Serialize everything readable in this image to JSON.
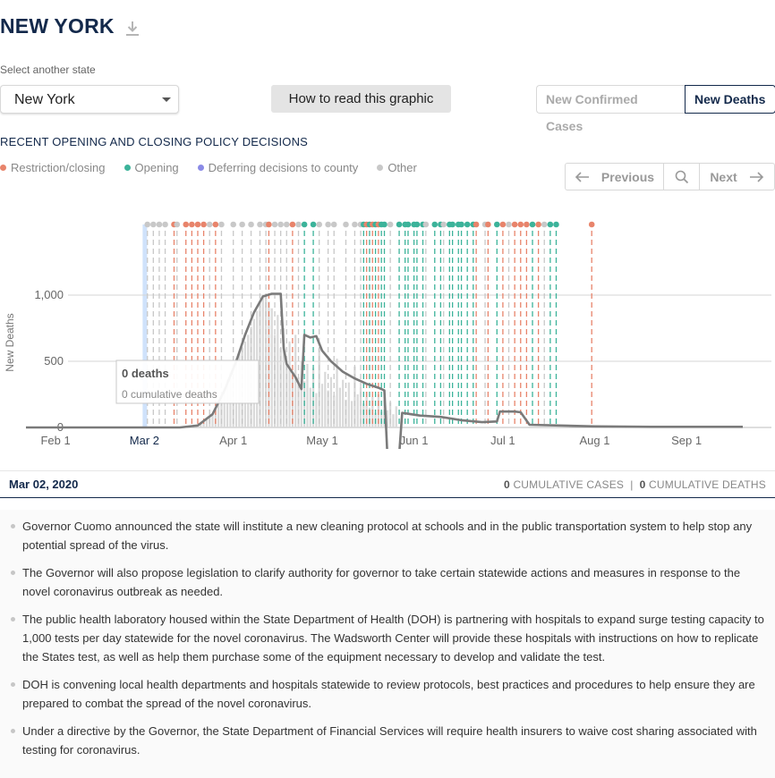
{
  "header": {
    "title": "NEW YORK"
  },
  "controls": {
    "select_label": "Select another state",
    "selected_state": "New York",
    "howto_label": "How to read this graphic",
    "toggle_cases": "New Confirmed Cases",
    "toggle_deaths": "New Deaths"
  },
  "policy": {
    "title": "RECENT OPENING AND CLOSING POLICY DECISIONS",
    "legend": [
      {
        "label": "Restriction/closing",
        "color": "#e8846b"
      },
      {
        "label": "Opening",
        "color": "#3cb39a"
      },
      {
        "label": "Deferring decisions to county",
        "color": "#8a8ae6"
      },
      {
        "label": "Other",
        "color": "#c8c8c8"
      }
    ],
    "pager": {
      "prev": "Previous",
      "next": "Next"
    }
  },
  "tooltip": {
    "main": "0 deaths",
    "sub": "0 cumulative deaths"
  },
  "chart_data": {
    "type": "bar",
    "ylabel": "New Deaths",
    "ylim": [
      0,
      1150
    ],
    "yticks": [
      {
        "label": "0",
        "value": 0
      },
      {
        "label": "500",
        "value": 500
      },
      {
        "label": "1,000",
        "value": 1000
      }
    ],
    "x_start": "2020-01-22",
    "x_end": "2020-09-20",
    "xticks": [
      {
        "label": "Feb 1",
        "date": "2020-02-01"
      },
      {
        "label": "Mar 2",
        "date": "2020-03-02",
        "highlight": true
      },
      {
        "label": "Apr 1",
        "date": "2020-04-01"
      },
      {
        "label": "May 1",
        "date": "2020-05-01"
      },
      {
        "label": "Jun 1",
        "date": "2020-06-01"
      },
      {
        "label": "Jul 1",
        "date": "2020-07-01"
      },
      {
        "label": "Aug 1",
        "date": "2020-08-01"
      },
      {
        "label": "Sep 1",
        "date": "2020-09-01"
      }
    ],
    "selected_date": "2020-03-02",
    "daily_bars": {
      "start": "2020-03-14",
      "values": [
        2,
        3,
        5,
        8,
        10,
        15,
        20,
        30,
        40,
        60,
        80,
        100,
        140,
        200,
        250,
        300,
        360,
        420,
        480,
        520,
        560,
        600,
        650,
        700,
        760,
        820,
        880,
        940,
        980,
        1000,
        950,
        900,
        700,
        850,
        600,
        750,
        480,
        650,
        400,
        700,
        380,
        500,
        350,
        480,
        300,
        450,
        260,
        600,
        330,
        420,
        280,
        380,
        240,
        520,
        300,
        360,
        210,
        340,
        200,
        460,
        250,
        300,
        180,
        270,
        150,
        230,
        110,
        250,
        120,
        210,
        130,
        190,
        100,
        160
      ]
    },
    "avg_line": [
      {
        "date": "2020-01-22",
        "value": 0
      },
      {
        "date": "2020-03-14",
        "value": 0
      },
      {
        "date": "2020-03-20",
        "value": 15
      },
      {
        "date": "2020-03-25",
        "value": 100
      },
      {
        "date": "2020-03-29",
        "value": 280
      },
      {
        "date": "2020-04-02",
        "value": 500
      },
      {
        "date": "2020-04-05",
        "value": 700
      },
      {
        "date": "2020-04-08",
        "value": 870
      },
      {
        "date": "2020-04-11",
        "value": 990
      },
      {
        "date": "2020-04-14",
        "value": 1010
      },
      {
        "date": "2020-04-17",
        "value": 1010
      },
      {
        "date": "2020-04-18",
        "value": 600
      },
      {
        "date": "2020-04-19",
        "value": 480
      },
      {
        "date": "2020-04-22",
        "value": 380
      },
      {
        "date": "2020-04-24",
        "value": 290
      },
      {
        "date": "2020-04-25",
        "value": 700
      },
      {
        "date": "2020-04-27",
        "value": 680
      },
      {
        "date": "2020-04-29",
        "value": 690
      },
      {
        "date": "2020-05-01",
        "value": 580
      },
      {
        "date": "2020-05-04",
        "value": 500
      },
      {
        "date": "2020-05-08",
        "value": 420
      },
      {
        "date": "2020-05-12",
        "value": 370
      },
      {
        "date": "2020-05-16",
        "value": 330
      },
      {
        "date": "2020-05-20",
        "value": 300
      },
      {
        "date": "2020-05-22",
        "value": 280
      },
      {
        "date": "2020-05-23",
        "value": -200
      },
      {
        "date": "2020-05-27",
        "value": -200
      },
      {
        "date": "2020-05-28",
        "value": 110
      },
      {
        "date": "2020-06-03",
        "value": 90
      },
      {
        "date": "2020-06-10",
        "value": 80
      },
      {
        "date": "2020-06-17",
        "value": 55
      },
      {
        "date": "2020-06-24",
        "value": 40
      },
      {
        "date": "2020-06-29",
        "value": 45
      },
      {
        "date": "2020-06-30",
        "value": 120
      },
      {
        "date": "2020-07-05",
        "value": 120
      },
      {
        "date": "2020-07-07",
        "value": 115
      },
      {
        "date": "2020-07-10",
        "value": 20
      },
      {
        "date": "2020-07-20",
        "value": 15
      },
      {
        "date": "2020-08-01",
        "value": 8
      },
      {
        "date": "2020-08-20",
        "value": 5
      },
      {
        "date": "2020-09-20",
        "value": 5
      }
    ],
    "policy_events": [
      {
        "date": "2020-03-03",
        "type": "other"
      },
      {
        "date": "2020-03-05",
        "type": "other"
      },
      {
        "date": "2020-03-07",
        "type": "other"
      },
      {
        "date": "2020-03-09",
        "type": "other"
      },
      {
        "date": "2020-03-12",
        "type": "restriction"
      },
      {
        "date": "2020-03-13",
        "type": "other"
      },
      {
        "date": "2020-03-16",
        "type": "restriction"
      },
      {
        "date": "2020-03-18",
        "type": "restriction"
      },
      {
        "date": "2020-03-20",
        "type": "restriction"
      },
      {
        "date": "2020-03-22",
        "type": "restriction"
      },
      {
        "date": "2020-03-24",
        "type": "other"
      },
      {
        "date": "2020-03-26",
        "type": "restriction"
      },
      {
        "date": "2020-03-28",
        "type": "other"
      },
      {
        "date": "2020-04-01",
        "type": "other"
      },
      {
        "date": "2020-04-04",
        "type": "other"
      },
      {
        "date": "2020-04-07",
        "type": "other"
      },
      {
        "date": "2020-04-10",
        "type": "other"
      },
      {
        "date": "2020-04-12",
        "type": "other"
      },
      {
        "date": "2020-04-13",
        "type": "restriction"
      },
      {
        "date": "2020-04-15",
        "type": "other"
      },
      {
        "date": "2020-04-17",
        "type": "other"
      },
      {
        "date": "2020-04-19",
        "type": "other"
      },
      {
        "date": "2020-04-21",
        "type": "restriction"
      },
      {
        "date": "2020-04-23",
        "type": "other"
      },
      {
        "date": "2020-04-25",
        "type": "opening"
      },
      {
        "date": "2020-04-28",
        "type": "opening"
      },
      {
        "date": "2020-04-30",
        "type": "other"
      },
      {
        "date": "2020-05-03",
        "type": "other"
      },
      {
        "date": "2020-05-05",
        "type": "other"
      },
      {
        "date": "2020-05-09",
        "type": "other"
      },
      {
        "date": "2020-05-12",
        "type": "other"
      },
      {
        "date": "2020-05-14",
        "type": "other"
      },
      {
        "date": "2020-05-15",
        "type": "opening"
      },
      {
        "date": "2020-05-16",
        "type": "restriction"
      },
      {
        "date": "2020-05-17",
        "type": "opening"
      },
      {
        "date": "2020-05-18",
        "type": "restriction"
      },
      {
        "date": "2020-05-19",
        "type": "opening"
      },
      {
        "date": "2020-05-20",
        "type": "restriction"
      },
      {
        "date": "2020-05-21",
        "type": "opening"
      },
      {
        "date": "2020-05-22",
        "type": "opening"
      },
      {
        "date": "2020-05-24",
        "type": "other"
      },
      {
        "date": "2020-05-27",
        "type": "opening"
      },
      {
        "date": "2020-05-29",
        "type": "opening"
      },
      {
        "date": "2020-05-30",
        "type": "opening"
      },
      {
        "date": "2020-06-01",
        "type": "opening"
      },
      {
        "date": "2020-06-02",
        "type": "opening"
      },
      {
        "date": "2020-06-04",
        "type": "opening"
      },
      {
        "date": "2020-06-05",
        "type": "other"
      },
      {
        "date": "2020-06-08",
        "type": "opening"
      },
      {
        "date": "2020-06-10",
        "type": "opening"
      },
      {
        "date": "2020-06-11",
        "type": "other"
      },
      {
        "date": "2020-06-13",
        "type": "opening"
      },
      {
        "date": "2020-06-14",
        "type": "opening"
      },
      {
        "date": "2020-06-16",
        "type": "opening"
      },
      {
        "date": "2020-06-17",
        "type": "opening"
      },
      {
        "date": "2020-06-19",
        "type": "opening"
      },
      {
        "date": "2020-06-21",
        "type": "opening"
      },
      {
        "date": "2020-06-22",
        "type": "restriction"
      },
      {
        "date": "2020-06-25",
        "type": "other"
      },
      {
        "date": "2020-06-26",
        "type": "restriction"
      },
      {
        "date": "2020-06-29",
        "type": "opening"
      },
      {
        "date": "2020-07-01",
        "type": "restriction"
      },
      {
        "date": "2020-07-03",
        "type": "other"
      },
      {
        "date": "2020-07-05",
        "type": "restriction"
      },
      {
        "date": "2020-07-07",
        "type": "restriction"
      },
      {
        "date": "2020-07-09",
        "type": "restriction"
      },
      {
        "date": "2020-07-11",
        "type": "opening"
      },
      {
        "date": "2020-07-13",
        "type": "restriction"
      },
      {
        "date": "2020-07-15",
        "type": "other"
      },
      {
        "date": "2020-07-17",
        "type": "opening"
      },
      {
        "date": "2020-07-19",
        "type": "opening"
      },
      {
        "date": "2020-07-31",
        "type": "restriction"
      }
    ]
  },
  "date_bar": {
    "date": "Mar 02, 2020",
    "cum_cases_num": "0",
    "cum_cases_label": "CUMULATIVE CASES",
    "separator": "|",
    "cum_deaths_num": "0",
    "cum_deaths_label": "CUMULATIVE DEATHS"
  },
  "notes": [
    "Governor Cuomo announced the state will institute a new cleaning protocol at schools and in the public transportation system to help stop any potential spread of the virus.",
    "The Governor will also propose legislation to clarify authority for governor to take certain statewide actions and measures in response to the novel coronavirus outbreak as needed.",
    "The public health laboratory housed within the State Department of Health (DOH) is partnering with hospitals to expand surge testing capacity to 1,000 tests per day statewide for the novel coronavirus. The Wadsworth Center will provide these hospitals with instructions on how to replicate the States test, as well as help them purchase some of the equipment necessary to develop and validate the test.",
    "DOH is convening local health departments and hospitals statewide to review protocols, best practices and procedures to help ensure they are prepared to combat the spread of the novel coronavirus.",
    "Under a directive by the Governor, the State Department of Financial Services will require health insurers to waive cost sharing associated with testing for coronavirus."
  ],
  "colors": {
    "navy": "#13294b",
    "restriction": "#e8846b",
    "opening": "#3cb39a",
    "county": "#8a8ae6",
    "other": "#c8c8c8",
    "bars": "#d9d9d9",
    "line": "#7a7a7a",
    "highlight": "#cfe2fb"
  }
}
